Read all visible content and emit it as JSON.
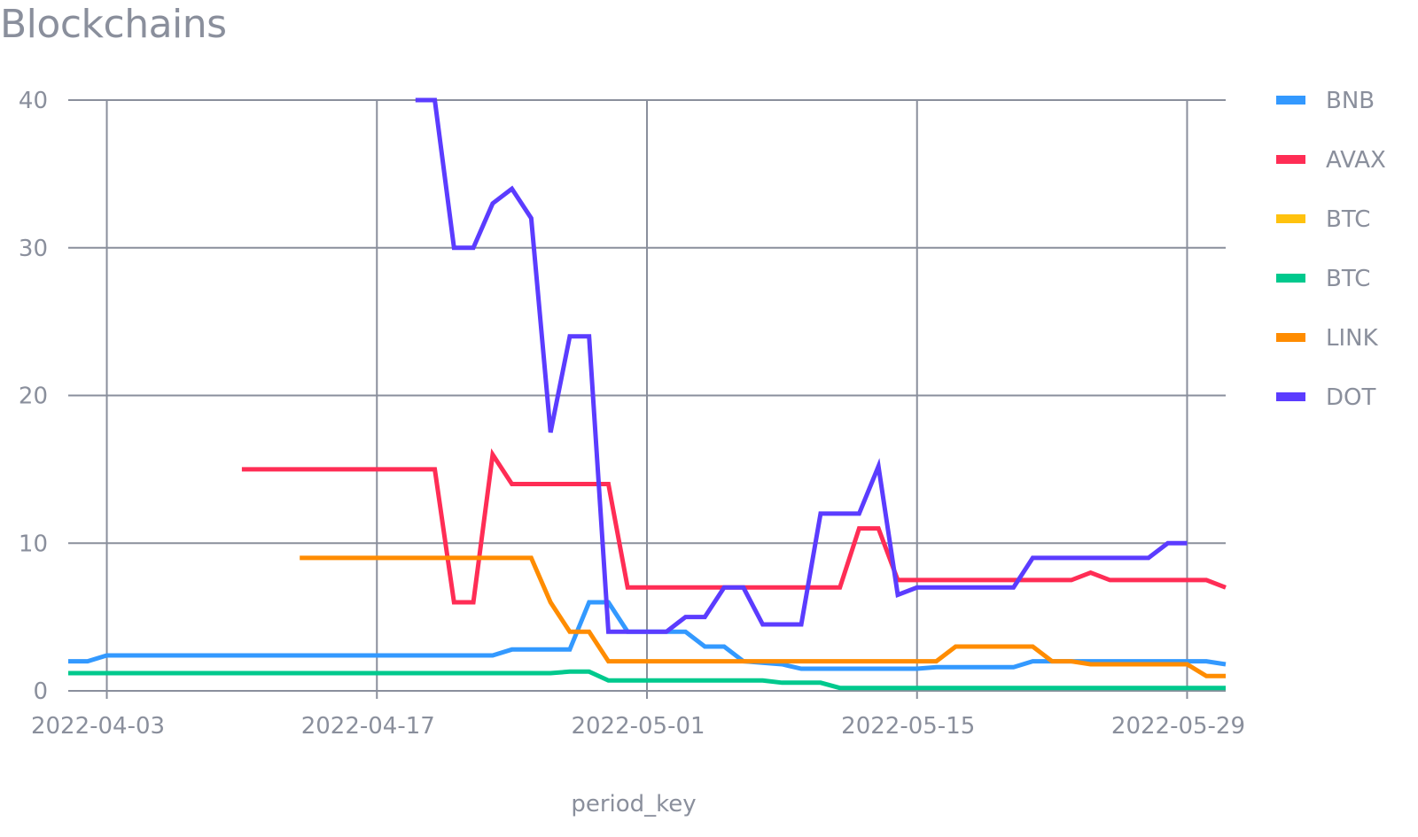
{
  "chart_data": {
    "type": "line",
    "title": "Blockchains",
    "xlabel": "period_key",
    "ylabel": "",
    "x_ticks": [
      "2022-04-03",
      "2022-04-17",
      "2022-05-01",
      "2022-05-15",
      "2022-05-29"
    ],
    "y_ticks": [
      "0",
      "10",
      "20",
      "30",
      "40"
    ],
    "xlim": [
      "2022-04-01",
      "2022-05-31"
    ],
    "ylim": [
      0,
      40
    ],
    "grid": true,
    "legend_position": "right",
    "series": [
      {
        "name": "BNB",
        "color": "#3399ff",
        "points": [
          [
            "2022-04-01",
            2
          ],
          [
            "2022-04-02",
            2
          ],
          [
            "2022-04-03",
            2.4
          ],
          [
            "2022-04-23",
            2.4
          ],
          [
            "2022-04-24",
            2.8
          ],
          [
            "2022-04-27",
            2.8
          ],
          [
            "2022-04-28",
            6
          ],
          [
            "2022-04-29",
            6
          ],
          [
            "2022-04-30",
            4
          ],
          [
            "2022-05-03",
            4
          ],
          [
            "2022-05-04",
            3
          ],
          [
            "2022-05-05",
            3
          ],
          [
            "2022-05-06",
            2
          ],
          [
            "2022-05-08",
            1.8
          ],
          [
            "2022-05-09",
            1.5
          ],
          [
            "2022-05-15",
            1.5
          ],
          [
            "2022-05-16",
            1.6
          ],
          [
            "2022-05-20",
            1.6
          ],
          [
            "2022-05-21",
            2
          ],
          [
            "2022-05-30",
            2
          ],
          [
            "2022-05-31",
            1.8
          ]
        ]
      },
      {
        "name": "AVAX",
        "color": "#ff2d55",
        "points": [
          [
            "2022-04-10",
            15
          ],
          [
            "2022-04-20",
            15
          ],
          [
            "2022-04-21",
            6
          ],
          [
            "2022-04-22",
            6
          ],
          [
            "2022-04-23",
            16
          ],
          [
            "2022-04-24",
            14
          ],
          [
            "2022-04-29",
            14
          ],
          [
            "2022-04-30",
            7
          ],
          [
            "2022-05-11",
            7
          ],
          [
            "2022-05-12",
            11
          ],
          [
            "2022-05-13",
            11
          ],
          [
            "2022-05-14",
            7.5
          ],
          [
            "2022-05-23",
            7.5
          ],
          [
            "2022-05-24",
            8
          ],
          [
            "2022-05-25",
            7.5
          ],
          [
            "2022-05-30",
            7.5
          ],
          [
            "2022-05-31",
            7
          ]
        ]
      },
      {
        "name": "BTC",
        "color": "#ffc20e",
        "points": []
      },
      {
        "name": "BTC",
        "color": "#00c98d",
        "points": [
          [
            "2022-04-01",
            1.2
          ],
          [
            "2022-04-26",
            1.2
          ],
          [
            "2022-04-27",
            1.3
          ],
          [
            "2022-04-28",
            1.3
          ],
          [
            "2022-04-29",
            0.7
          ],
          [
            "2022-05-07",
            0.7
          ],
          [
            "2022-05-08",
            0.55
          ],
          [
            "2022-05-10",
            0.55
          ],
          [
            "2022-05-11",
            0.2
          ],
          [
            "2022-05-31",
            0.2
          ]
        ]
      },
      {
        "name": "LINK",
        "color": "#ff8c00",
        "points": [
          [
            "2022-04-13",
            9
          ],
          [
            "2022-04-25",
            9
          ],
          [
            "2022-04-26",
            6
          ],
          [
            "2022-04-27",
            4
          ],
          [
            "2022-04-28",
            4
          ],
          [
            "2022-04-29",
            2
          ],
          [
            "2022-05-16",
            2
          ],
          [
            "2022-05-17",
            3
          ],
          [
            "2022-05-21",
            3
          ],
          [
            "2022-05-22",
            2
          ],
          [
            "2022-05-23",
            2
          ],
          [
            "2022-05-24",
            1.8
          ],
          [
            "2022-05-29",
            1.8
          ],
          [
            "2022-05-30",
            1
          ],
          [
            "2022-05-31",
            1
          ]
        ]
      },
      {
        "name": "DOT",
        "color": "#5b3cff",
        "points": [
          [
            "2022-04-19",
            40
          ],
          [
            "2022-04-20",
            40
          ],
          [
            "2022-04-21",
            30
          ],
          [
            "2022-04-22",
            30
          ],
          [
            "2022-04-23",
            33
          ],
          [
            "2022-04-24",
            34
          ],
          [
            "2022-04-25",
            32
          ],
          [
            "2022-04-26",
            17.5
          ],
          [
            "2022-04-27",
            24
          ],
          [
            "2022-04-28",
            24
          ],
          [
            "2022-04-29",
            4
          ],
          [
            "2022-05-02",
            4
          ],
          [
            "2022-05-03",
            5
          ],
          [
            "2022-05-04",
            5
          ],
          [
            "2022-05-05",
            7
          ],
          [
            "2022-05-06",
            7
          ],
          [
            "2022-05-07",
            4.5
          ],
          [
            "2022-05-09",
            4.5
          ],
          [
            "2022-05-10",
            12
          ],
          [
            "2022-05-12",
            12
          ],
          [
            "2022-05-13",
            15.2
          ],
          [
            "2022-05-14",
            6.5
          ],
          [
            "2022-05-15",
            7
          ],
          [
            "2022-05-20",
            7
          ],
          [
            "2022-05-21",
            9
          ],
          [
            "2022-05-27",
            9
          ],
          [
            "2022-05-28",
            10
          ],
          [
            "2022-05-29",
            10
          ]
        ]
      }
    ]
  }
}
